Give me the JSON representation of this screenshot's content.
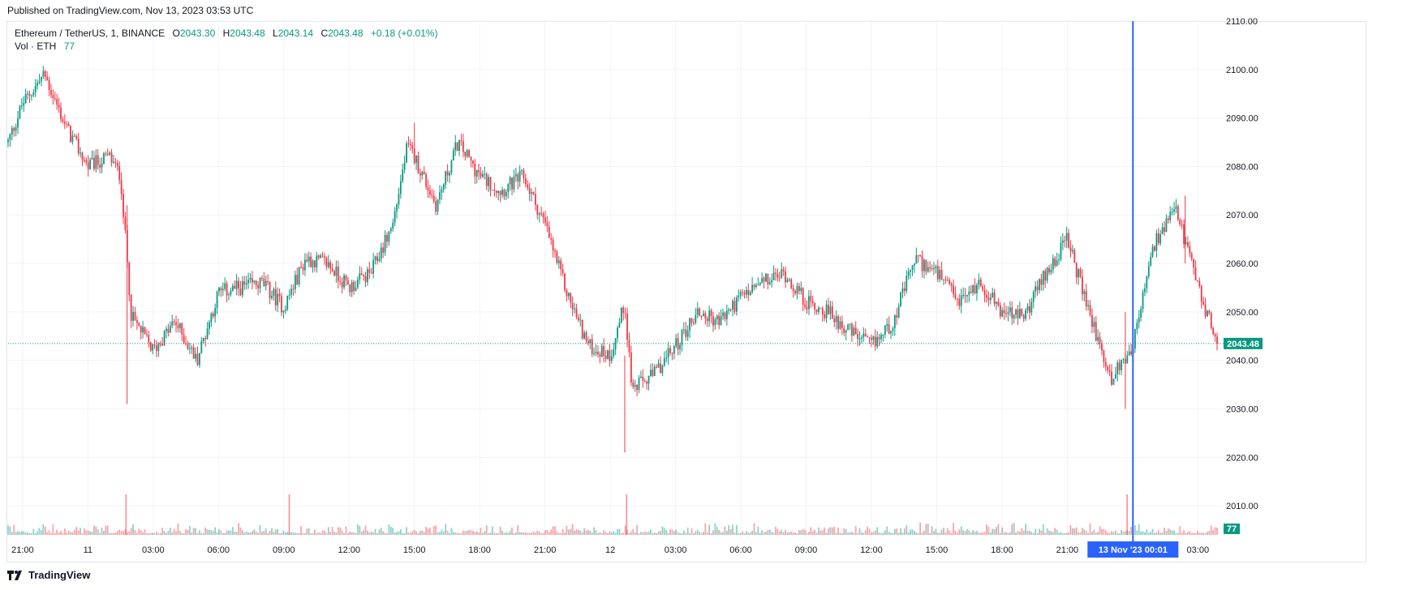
{
  "published": "Published on TradingView.com, Nov 13, 2023 03:53 UTC",
  "legend": {
    "symbol": "Ethereum / TetherUS, 1, BINANCE",
    "open_label": "O",
    "open": "2043.30",
    "high_label": "H",
    "high": "2043.48",
    "low_label": "L",
    "low": "2043.14",
    "close_label": "C",
    "close": "2043.48",
    "change": "+0.18 (+0.01%)",
    "volume_label": "Vol · ETH",
    "volume": "77"
  },
  "footer": {
    "brand": "TradingView"
  },
  "colors": {
    "up": "#089981",
    "down": "#f23645",
    "crosshair": "#2962ff",
    "grid": "#f0f3fa"
  },
  "chart_data": {
    "type": "line",
    "title": "Ethereum / TetherUS, 1, BINANCE",
    "xlabel": "",
    "ylabel": "",
    "ylim": [
      2004,
      2110
    ],
    "y_ticks": [
      "2010.00",
      "2020.00",
      "2030.00",
      "2040.00",
      "2050.00",
      "2060.00",
      "2070.00",
      "2080.00",
      "2090.00",
      "2100.00",
      "2110.00"
    ],
    "x_ticks": [
      "21:00",
      "11",
      "03:00",
      "06:00",
      "09:00",
      "12:00",
      "15:00",
      "18:00",
      "21:00",
      "12",
      "03:00",
      "06:00",
      "09:00",
      "12:00",
      "15:00",
      "18:00",
      "21:00",
      "13 Nov '23",
      "03:00"
    ],
    "last_price": "2043.48",
    "last_volume": "77",
    "crosshair_label": "13 Nov '23  00:01",
    "grid": true,
    "series": [
      {
        "x": [
          "Nov 10 20:20",
          "Nov 10 21:00",
          "Nov 10 22:00",
          "Nov 10 23:00",
          "Nov 11 00:00",
          "Nov 11 01:00",
          "Nov 11 01:30",
          "Nov 11 02:00",
          "Nov 11 03:00",
          "Nov 11 04:00",
          "Nov 11 05:00",
          "Nov 11 06:00",
          "Nov 11 07:00",
          "Nov 11 08:00",
          "Nov 11 09:00",
          "Nov 11 10:00",
          "Nov 11 11:00",
          "Nov 11 12:00",
          "Nov 11 13:00",
          "Nov 11 14:00",
          "Nov 11 14:40",
          "Nov 11 15:00",
          "Nov 11 16:00",
          "Nov 11 17:00",
          "Nov 11 18:00",
          "Nov 11 19:00",
          "Nov 11 20:00",
          "Nov 11 21:00",
          "Nov 11 22:00",
          "Nov 11 23:00",
          "Nov 12 00:00",
          "Nov 12 00:40",
          "Nov 12 01:00",
          "Nov 12 02:00",
          "Nov 12 03:00",
          "Nov 12 04:00",
          "Nov 12 05:00",
          "Nov 12 06:00",
          "Nov 12 07:00",
          "Nov 12 08:00",
          "Nov 12 09:00",
          "Nov 12 10:00",
          "Nov 12 11:00",
          "Nov 12 12:00",
          "Nov 12 13:00",
          "Nov 12 14:00",
          "Nov 12 15:00",
          "Nov 12 16:00",
          "Nov 12 17:00",
          "Nov 12 18:00",
          "Nov 12 19:00",
          "Nov 12 20:00",
          "Nov 12 21:00",
          "Nov 12 22:00",
          "Nov 12 23:00",
          "Nov 13 00:00",
          "Nov 13 01:00",
          "Nov 13 02:00",
          "Nov 13 02:30",
          "Nov 13 03:00",
          "Nov 13 03:53"
        ],
        "y": [
          2085,
          2093,
          2099,
          2088,
          2080,
          2082,
          2078,
          2049,
          2042,
          2048,
          2040,
          2054,
          2055,
          2056,
          2051,
          2061,
          2060,
          2055,
          2058,
          2068,
          2084,
          2082,
          2072,
          2085,
          2078,
          2075,
          2078,
          2068,
          2054,
          2043,
          2041,
          2052,
          2034,
          2037,
          2043,
          2050,
          2048,
          2053,
          2056,
          2058,
          2052,
          2050,
          2046,
          2043,
          2048,
          2061,
          2058,
          2052,
          2056,
          2050,
          2049,
          2058,
          2065,
          2050,
          2036,
          2043,
          2064,
          2071,
          2063,
          2055,
          2043.48
        ]
      }
    ],
    "volume_series": [
      {
        "x": "Nov 11 01:45",
        "v": "spike"
      },
      {
        "x": "Nov 11 09:15",
        "v": "spike"
      },
      {
        "x": "Nov 12 00:45",
        "v": "spike"
      },
      {
        "x": "Nov 12 23:45",
        "v": "spike"
      }
    ]
  }
}
